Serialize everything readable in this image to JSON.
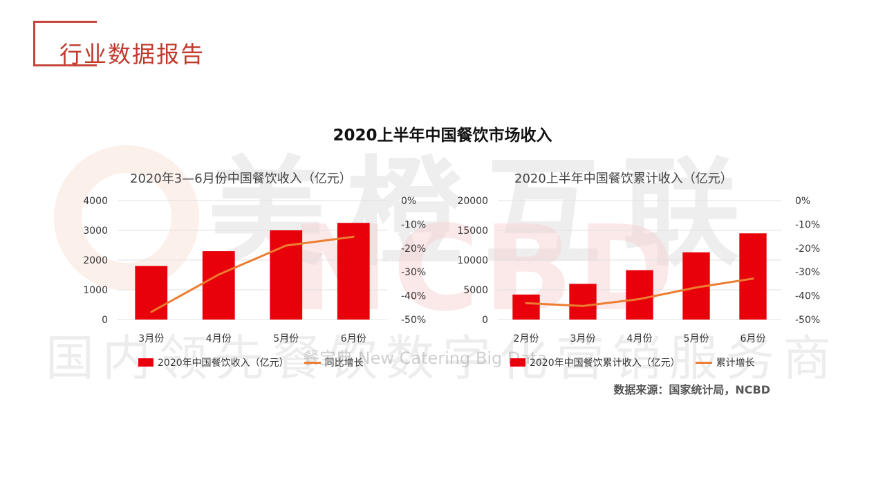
{
  "header": {
    "title": "行业数据报告"
  },
  "page_title": "2020上半年中国餐饮市场收入",
  "watermark": {
    "brand": "美橙互联",
    "letters": "NCBD",
    "slogan": "国内领先餐饮数字化营销服务商",
    "en": "餐宝典  New Catering Big Data"
  },
  "source": "数据来源：国家统计局，NCBD",
  "colors": {
    "bar": "#e8000b",
    "line": "#ed7d31",
    "accent": "#c0392b"
  },
  "chart_data": [
    {
      "type": "bar",
      "title": "2020年3—6月份中国餐饮收入（亿元）",
      "categories": [
        "3月份",
        "4月份",
        "5月份",
        "6月份"
      ],
      "series": [
        {
          "name": "2020年中国餐饮收入（亿元）",
          "type": "bar",
          "axis": "left",
          "values": [
            1800,
            2300,
            3000,
            3250
          ]
        },
        {
          "name": "同比增长",
          "type": "line",
          "axis": "right",
          "values": [
            -46.8,
            -31.1,
            -18.9,
            -15.2
          ]
        }
      ],
      "ylim_left": [
        0,
        4000
      ],
      "yticks_left": [
        "0",
        "1000",
        "2000",
        "3000",
        "4000"
      ],
      "ylim_right": [
        -50,
        0
      ],
      "yticks_right": [
        "-50%",
        "-40%",
        "-30%",
        "-20%",
        "-10%",
        "0%"
      ],
      "grid": true,
      "legend": "bottom"
    },
    {
      "type": "bar",
      "title": "2020上半年中国餐饮累计收入（亿元）",
      "categories": [
        "2月份",
        "3月份",
        "4月份",
        "5月份",
        "6月份"
      ],
      "series": [
        {
          "name": "2020年中国餐饮累计收入（亿元）",
          "type": "bar",
          "axis": "left",
          "values": [
            4200,
            6000,
            8300,
            11300,
            14500
          ]
        },
        {
          "name": "累计增长",
          "type": "line",
          "axis": "right",
          "values": [
            -43.1,
            -44.3,
            -41.4,
            -36.5,
            -32.8
          ]
        }
      ],
      "ylim_left": [
        0,
        20000
      ],
      "yticks_left": [
        "0",
        "5000",
        "10000",
        "15000",
        "20000"
      ],
      "ylim_right": [
        -50,
        0
      ],
      "yticks_right": [
        "-50%",
        "-40%",
        "-30%",
        "-20%",
        "-10%",
        "0%"
      ],
      "grid": true,
      "legend": "bottom"
    }
  ]
}
